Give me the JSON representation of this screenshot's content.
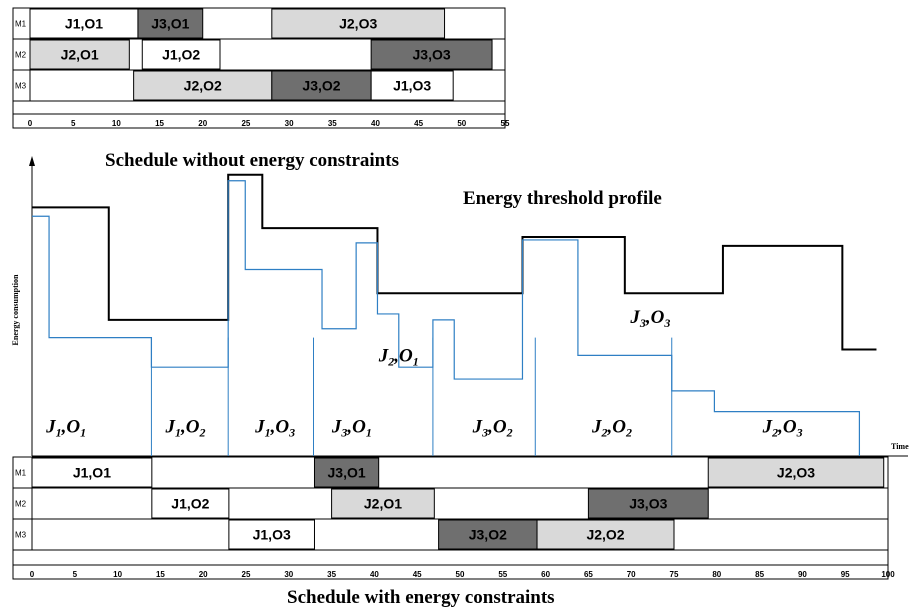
{
  "top_gantt": {
    "machines": [
      "M1",
      "M2",
      "M3"
    ],
    "time_scale": {
      "min": 0,
      "max": 55,
      "ticks": [
        0,
        5,
        10,
        15,
        20,
        25,
        30,
        35,
        40,
        45,
        50,
        55
      ]
    },
    "tasks": [
      {
        "machine": "M1",
        "label": "J1,O1",
        "start": 0,
        "end": 12.5,
        "job": "J1"
      },
      {
        "machine": "M1",
        "label": "J3,O1",
        "start": 12.5,
        "end": 20,
        "job": "J3"
      },
      {
        "machine": "M1",
        "label": "J2,O3",
        "start": 28,
        "end": 48,
        "job": "J2"
      },
      {
        "machine": "M2",
        "label": "J2,O1",
        "start": 0,
        "end": 11.5,
        "job": "J2"
      },
      {
        "machine": "M2",
        "label": "J1,O2",
        "start": 13,
        "end": 22,
        "job": "J1"
      },
      {
        "machine": "M2",
        "label": "J3,O3",
        "start": 39.5,
        "end": 53.5,
        "job": "J3"
      },
      {
        "machine": "M3",
        "label": "J2,O2",
        "start": 12,
        "end": 28,
        "job": "J2"
      },
      {
        "machine": "M3",
        "label": "J3,O2",
        "start": 28,
        "end": 39.5,
        "job": "J3"
      },
      {
        "machine": "M3",
        "label": "J1,O3",
        "start": 39.5,
        "end": 49,
        "job": "J1"
      }
    ],
    "caption": "Schedule without energy constraints"
  },
  "energy_chart": {
    "y_label": "Energy consumption",
    "x_label": "Time",
    "threshold_label": "Energy threshold profile",
    "threshold_profile": [
      [
        0,
        0.84
      ],
      [
        9,
        0.84
      ],
      [
        9,
        0.46
      ],
      [
        23,
        0.46
      ],
      [
        23,
        0.95
      ],
      [
        27,
        0.95
      ],
      [
        27,
        0.77
      ],
      [
        40.5,
        0.77
      ],
      [
        40.5,
        0.55
      ],
      [
        57.5,
        0.55
      ],
      [
        57.5,
        0.74
      ],
      [
        69.5,
        0.74
      ],
      [
        69.5,
        0.55
      ],
      [
        81,
        0.55
      ],
      [
        81,
        0.71
      ],
      [
        95,
        0.71
      ],
      [
        95,
        0.36
      ],
      [
        99,
        0.36
      ]
    ],
    "consumption_profile": [
      [
        0,
        0.81
      ],
      [
        2,
        0.81
      ],
      [
        2,
        0.4
      ],
      [
        14,
        0.4
      ],
      [
        14,
        0.3
      ],
      [
        23,
        0.3
      ],
      [
        23,
        0.93
      ],
      [
        25,
        0.93
      ],
      [
        25,
        0.63
      ],
      [
        34,
        0.63
      ],
      [
        34,
        0.43
      ],
      [
        38,
        0.43
      ],
      [
        38,
        0.72
      ],
      [
        40.5,
        0.72
      ],
      [
        40.5,
        0.48
      ],
      [
        43,
        0.48
      ],
      [
        43,
        0.3
      ],
      [
        47,
        0.3
      ],
      [
        47,
        0.46
      ],
      [
        49.5,
        0.46
      ],
      [
        49.5,
        0.26
      ],
      [
        57.5,
        0.26
      ],
      [
        57.5,
        0.73
      ],
      [
        64,
        0.73
      ],
      [
        64,
        0.34
      ],
      [
        75,
        0.34
      ],
      [
        75,
        0.22
      ],
      [
        80,
        0.22
      ],
      [
        80,
        0.15
      ],
      [
        97,
        0.15
      ],
      [
        97,
        0.0
      ]
    ],
    "annotations": [
      {
        "text": "J1,O1",
        "sub": [
          "1",
          "1"
        ],
        "base": [
          "J",
          "O"
        ],
        "t": 4
      },
      {
        "text": "J1,O2",
        "sub": [
          "1",
          "2"
        ],
        "base": [
          "J",
          "O"
        ],
        "t": 18
      },
      {
        "text": "J1,O3",
        "sub": [
          "1",
          "3"
        ],
        "base": [
          "J",
          "O"
        ],
        "t": 28.5
      },
      {
        "text": "J3,O1",
        "sub": [
          "3",
          "1"
        ],
        "base": [
          "J",
          "O"
        ],
        "t": 37.5
      },
      {
        "text": "J2,O1",
        "sub": [
          "2",
          "1"
        ],
        "base": [
          "J",
          "O"
        ],
        "t": 43,
        "level": 0.32
      },
      {
        "text": "J3,O2",
        "sub": [
          "3",
          "2"
        ],
        "base": [
          "J",
          "O"
        ],
        "t": 54
      },
      {
        "text": "J2,O2",
        "sub": [
          "2",
          "2"
        ],
        "base": [
          "J",
          "O"
        ],
        "t": 68
      },
      {
        "text": "J3,O3",
        "sub": [
          "3",
          "3"
        ],
        "base": [
          "J",
          "O"
        ],
        "t": 72.5,
        "level": 0.45
      },
      {
        "text": "J2,O3",
        "sub": [
          "2",
          "3"
        ],
        "base": [
          "J",
          "O"
        ],
        "t": 88
      }
    ]
  },
  "bottom_gantt": {
    "machines": [
      "M1",
      "M2",
      "M3"
    ],
    "time_scale": {
      "min": 0,
      "max": 100,
      "ticks": [
        0,
        5,
        10,
        15,
        20,
        25,
        30,
        35,
        40,
        45,
        50,
        55,
        60,
        65,
        70,
        75,
        80,
        85,
        90,
        95,
        100
      ]
    },
    "tasks": [
      {
        "machine": "M1",
        "label": "J1,O1",
        "start": 0,
        "end": 14,
        "job": "J1"
      },
      {
        "machine": "M1",
        "label": "J3,O1",
        "start": 33,
        "end": 40.5,
        "job": "J3"
      },
      {
        "machine": "M1",
        "label": "J2,O3",
        "start": 79,
        "end": 99.5,
        "job": "J2"
      },
      {
        "machine": "M2",
        "label": "J1,O2",
        "start": 14,
        "end": 23,
        "job": "J1"
      },
      {
        "machine": "M2",
        "label": "J2,O1",
        "start": 35,
        "end": 47,
        "job": "J2"
      },
      {
        "machine": "M2",
        "label": "J3,O3",
        "start": 65,
        "end": 79,
        "job": "J3"
      },
      {
        "machine": "M3",
        "label": "J1,O3",
        "start": 23,
        "end": 33,
        "job": "J1"
      },
      {
        "machine": "M3",
        "label": "J3,O2",
        "start": 47.5,
        "end": 59,
        "job": "J3"
      },
      {
        "machine": "M3",
        "label": "J2,O2",
        "start": 59,
        "end": 75,
        "job": "J2"
      }
    ],
    "caption": "Schedule with energy constraints"
  },
  "colors": {
    "J1": "#ffffff",
    "J2": "#d9d9d9",
    "J3": "#6f6f6f",
    "threshold": "#000000",
    "consumption": "#2e7fc4"
  }
}
